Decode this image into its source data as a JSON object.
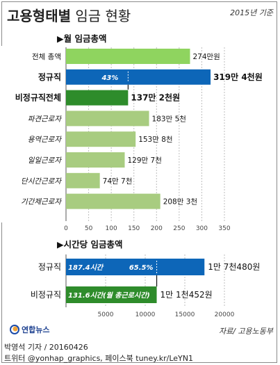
{
  "header": {
    "title_bold": "고용형태별",
    "title_rest": " 임금 현황",
    "year_note": "2015년 기준"
  },
  "source": "자료/ 고용노동부",
  "logo": {
    "text": "연합뉴스",
    "icon": "yonhap-logo-icon"
  },
  "credit_line1": "박영석 기자 / 20160426",
  "credit_line2": "트위터 @yonhap_graphics, 페이스북 tuney.kr/LeYN1",
  "colors": {
    "gray_bar": "#8fd45f",
    "total_bar": "#8fd45f",
    "regular_bar": "#0d66b8",
    "irregular_bar": "#2e8c2b",
    "sub_bar": "#a8cc80"
  },
  "chart_data": [
    {
      "type": "bar",
      "orientation": "horizontal",
      "title": "▶월 임금총액",
      "categories": [
        "전체 총액",
        "정규직",
        "비정규직전체",
        "파견근로자",
        "용역근로자",
        "일일근로자",
        "단시간근로자",
        "기간제근로자"
      ],
      "values": [
        274,
        319.4,
        137.2,
        183.5,
        153.8,
        129.7,
        74.7,
        208.3
      ],
      "value_labels": [
        "274만원",
        "319만 4천원",
        "137만 2천원",
        "183만 5천",
        "153만 8천",
        "129만 7천",
        "74만 7천",
        "208만 3천"
      ],
      "xlim": [
        0,
        350
      ],
      "xticks": [
        0,
        50,
        100,
        150,
        200,
        250,
        300,
        350
      ],
      "annotation": "43%",
      "grid": true
    },
    {
      "type": "bar",
      "orientation": "horizontal",
      "title": "▶시간당 임금총액",
      "categories": [
        "정규직",
        "비정규직"
      ],
      "values": [
        17480,
        11452
      ],
      "value_labels": [
        "1만 7천480원",
        "1만 1천452원"
      ],
      "inner_labels": [
        "187.4시간",
        "131.6시간(월 총근로시간)"
      ],
      "annotation": "65.5%",
      "xlim": [
        0,
        20000
      ],
      "xticks": [
        5000,
        10000,
        15000,
        20000
      ],
      "grid": true
    }
  ]
}
